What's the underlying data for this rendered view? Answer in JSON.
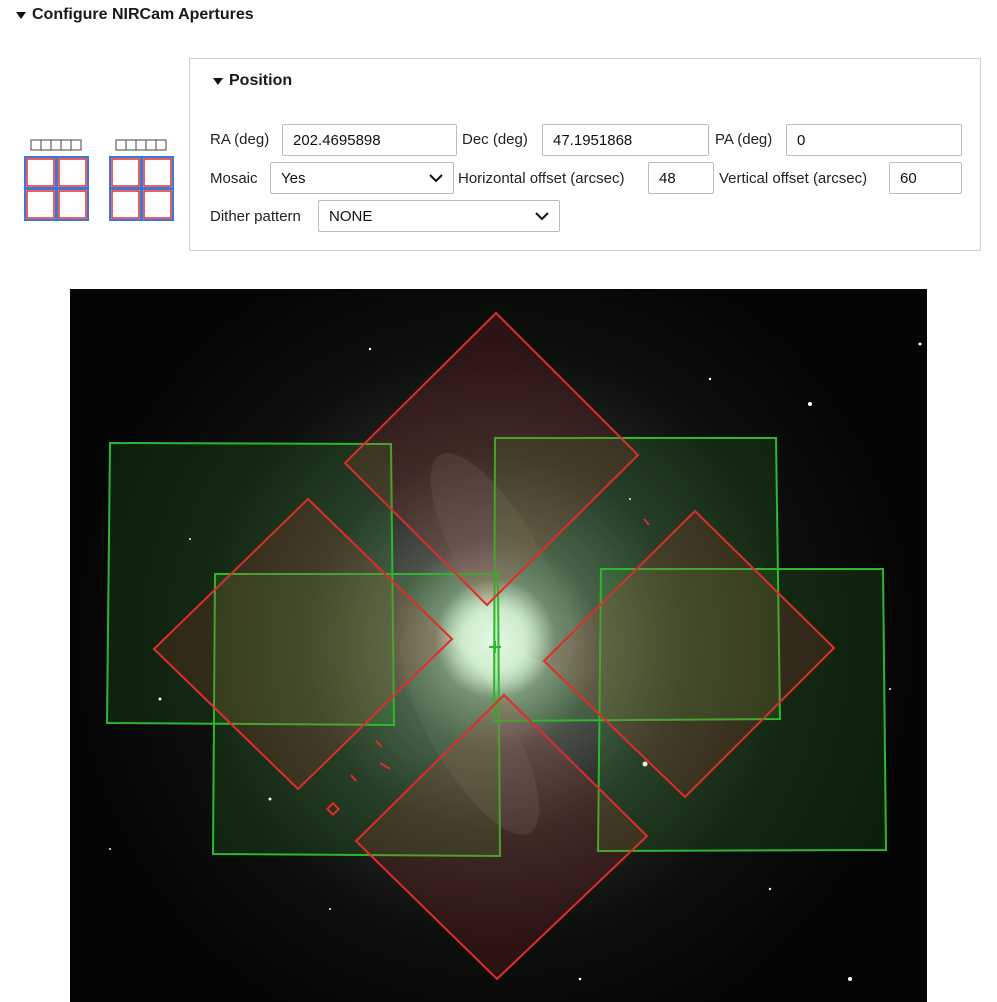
{
  "section": {
    "title": "Configure NIRCam Apertures"
  },
  "position": {
    "title": "Position",
    "ra": {
      "label": "RA (deg)",
      "value": "202.4695898"
    },
    "dec": {
      "label": "Dec (deg)",
      "value": "47.1951868"
    },
    "pa": {
      "label": "PA (deg)",
      "value": "0"
    },
    "mosaic": {
      "label": "Mosaic",
      "selected": "Yes"
    },
    "hoffset": {
      "label": "Horizontal offset (arcsec)",
      "value": "48"
    },
    "voffset": {
      "label": "Vertical offset (arcsec)",
      "value": "60"
    },
    "dither": {
      "label": "Dither pattern",
      "selected": "NONE"
    }
  },
  "colors": {
    "short_wave_aperture": "#e02c2c",
    "long_wave_aperture": "#2fb52f",
    "detector_blue": "#3a78d8"
  },
  "icons": [
    "nircam-module-icon",
    "nircam-module-icon",
    "chevron-down-icon",
    "triangle-down-icon"
  ]
}
